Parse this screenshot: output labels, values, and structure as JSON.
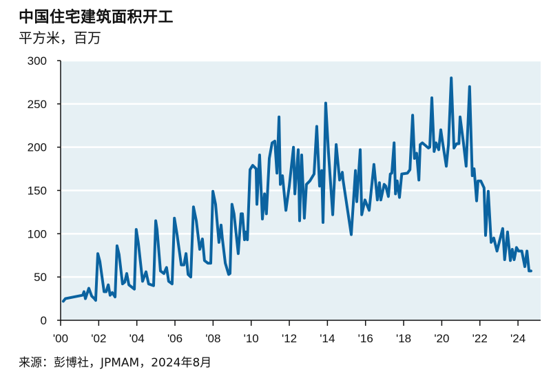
{
  "chart_data": {
    "type": "line",
    "title": "中国住宅建筑面积开工",
    "subtitle": "平方米，百万",
    "source": "来源：彭博社，JPMAM，2024年8月",
    "xlabel": "",
    "ylabel": "",
    "xlim": [
      2000,
      2025.2
    ],
    "ylim": [
      0,
      300
    ],
    "x_ticks": [
      2000,
      2002,
      2004,
      2006,
      2008,
      2010,
      2012,
      2014,
      2016,
      2018,
      2020,
      2022,
      2024
    ],
    "x_tick_labels": [
      "'00",
      "'02",
      "'04",
      "'06",
      "'08",
      "'10",
      "'12",
      "'14",
      "'16",
      "'18",
      "'20",
      "'22",
      "'24"
    ],
    "y_ticks": [
      0,
      50,
      100,
      150,
      200,
      250,
      300
    ],
    "y_tick_labels": [
      "0",
      "50",
      "100",
      "150",
      "200",
      "250",
      "300"
    ],
    "grid": "horizontal",
    "colors": {
      "line": "#0b63a0",
      "plot_background": "#e6f0f4",
      "grid": "#ffffff"
    },
    "series": [
      {
        "points": [
          [
            2000.14,
            22
          ],
          [
            2000.25,
            25
          ],
          [
            2001.16,
            29
          ],
          [
            2001.23,
            33
          ],
          [
            2001.3,
            25
          ],
          [
            2001.48,
            37
          ],
          [
            2001.63,
            28
          ],
          [
            2001.77,
            25
          ],
          [
            2001.84,
            23
          ],
          [
            2001.95,
            77
          ],
          [
            2002.06,
            68
          ],
          [
            2002.28,
            33
          ],
          [
            2002.39,
            33
          ],
          [
            2002.5,
            41
          ],
          [
            2002.6,
            29
          ],
          [
            2002.71,
            32
          ],
          [
            2002.86,
            27
          ],
          [
            2002.96,
            86
          ],
          [
            2003.07,
            76
          ],
          [
            2003.25,
            42
          ],
          [
            2003.36,
            44
          ],
          [
            2003.47,
            54
          ],
          [
            2003.58,
            41
          ],
          [
            2003.87,
            36
          ],
          [
            2003.97,
            105
          ],
          [
            2004.08,
            89
          ],
          [
            2004.3,
            45
          ],
          [
            2004.48,
            56
          ],
          [
            2004.62,
            42
          ],
          [
            2004.88,
            40
          ],
          [
            2004.99,
            115
          ],
          [
            2005.06,
            105
          ],
          [
            2005.24,
            57
          ],
          [
            2005.42,
            54
          ],
          [
            2005.56,
            61
          ],
          [
            2005.67,
            45
          ],
          [
            2005.85,
            42
          ],
          [
            2005.97,
            118
          ],
          [
            2006.11,
            99
          ],
          [
            2006.33,
            64
          ],
          [
            2006.47,
            64
          ],
          [
            2006.58,
            77
          ],
          [
            2006.69,
            53
          ],
          [
            2006.83,
            50
          ],
          [
            2006.97,
            131
          ],
          [
            2007.12,
            115
          ],
          [
            2007.3,
            82
          ],
          [
            2007.44,
            94
          ],
          [
            2007.55,
            69
          ],
          [
            2007.73,
            66
          ],
          [
            2007.88,
            66
          ],
          [
            2007.99,
            149
          ],
          [
            2008.13,
            134
          ],
          [
            2008.31,
            90
          ],
          [
            2008.42,
            110
          ],
          [
            2008.49,
            94
          ],
          [
            2008.64,
            66
          ],
          [
            2008.82,
            53
          ],
          [
            2008.89,
            54
          ],
          [
            2008.99,
            134
          ],
          [
            2009.1,
            123
          ],
          [
            2009.32,
            77
          ],
          [
            2009.47,
            123
          ],
          [
            2009.54,
            123
          ],
          [
            2009.65,
            93
          ],
          [
            2009.72,
            102
          ],
          [
            2009.8,
            93
          ],
          [
            2009.94,
            174
          ],
          [
            2010.08,
            179
          ],
          [
            2010.26,
            175
          ],
          [
            2010.3,
            134
          ],
          [
            2010.44,
            191
          ],
          [
            2010.59,
            117
          ],
          [
            2010.7,
            146
          ],
          [
            2010.8,
            123
          ],
          [
            2010.95,
            187
          ],
          [
            2011.1,
            205
          ],
          [
            2011.24,
            207
          ],
          [
            2011.35,
            170
          ],
          [
            2011.46,
            235
          ],
          [
            2011.53,
            157
          ],
          [
            2011.64,
            167
          ],
          [
            2011.82,
            127
          ],
          [
            2012.0,
            155
          ],
          [
            2012.22,
            200
          ],
          [
            2012.29,
            146
          ],
          [
            2012.47,
            197
          ],
          [
            2012.54,
            115
          ],
          [
            2012.65,
            191
          ],
          [
            2012.79,
            118
          ],
          [
            2012.9,
            157
          ],
          [
            2013.08,
            161
          ],
          [
            2013.3,
            169
          ],
          [
            2013.44,
            224
          ],
          [
            2013.59,
            155
          ],
          [
            2013.7,
            173
          ],
          [
            2013.77,
            113
          ],
          [
            2013.91,
            251
          ],
          [
            2014.06,
            193
          ],
          [
            2014.28,
            122
          ],
          [
            2014.46,
            203
          ],
          [
            2014.64,
            162
          ],
          [
            2014.78,
            171
          ],
          [
            2014.82,
            162
          ],
          [
            2015.25,
            99
          ],
          [
            2015.47,
            173
          ],
          [
            2015.54,
            137
          ],
          [
            2015.72,
            197
          ],
          [
            2015.8,
            122
          ],
          [
            2015.97,
            139
          ],
          [
            2016.19,
            127
          ],
          [
            2016.44,
            180
          ],
          [
            2016.62,
            139
          ],
          [
            2016.73,
            159
          ],
          [
            2016.8,
            139
          ],
          [
            2016.98,
            157
          ],
          [
            2017.06,
            155
          ],
          [
            2017.2,
            143
          ],
          [
            2017.3,
            169
          ],
          [
            2017.38,
            170
          ],
          [
            2017.5,
            205
          ],
          [
            2017.57,
            146
          ],
          [
            2017.66,
            161
          ],
          [
            2017.78,
            142
          ],
          [
            2017.9,
            169
          ],
          [
            2018.2,
            170
          ],
          [
            2018.33,
            174
          ],
          [
            2018.47,
            237
          ],
          [
            2018.57,
            187
          ],
          [
            2018.68,
            193
          ],
          [
            2018.8,
            162
          ],
          [
            2018.87,
            203
          ],
          [
            2018.98,
            205
          ],
          [
            2019.3,
            199
          ],
          [
            2019.37,
            200
          ],
          [
            2019.48,
            257
          ],
          [
            2019.6,
            195
          ],
          [
            2019.7,
            205
          ],
          [
            2019.84,
            197
          ],
          [
            2019.95,
            220
          ],
          [
            2020.06,
            203
          ],
          [
            2020.24,
            178
          ],
          [
            2020.35,
            203
          ],
          [
            2020.5,
            280
          ],
          [
            2020.64,
            199
          ],
          [
            2020.78,
            204
          ],
          [
            2020.9,
            204
          ],
          [
            2020.96,
            235
          ],
          [
            2021.14,
            205
          ],
          [
            2021.28,
            178
          ],
          [
            2021.46,
            270
          ],
          [
            2021.6,
            167
          ],
          [
            2021.7,
            175
          ],
          [
            2021.83,
            138
          ],
          [
            2021.9,
            161
          ],
          [
            2022.05,
            161
          ],
          [
            2022.22,
            153
          ],
          [
            2022.3,
            98
          ],
          [
            2022.44,
            149
          ],
          [
            2022.59,
            90
          ],
          [
            2022.73,
            95
          ],
          [
            2022.9,
            80
          ],
          [
            2023.2,
            106
          ],
          [
            2023.3,
            70
          ],
          [
            2023.45,
            102
          ],
          [
            2023.6,
            69
          ],
          [
            2023.7,
            82
          ],
          [
            2023.8,
            70
          ],
          [
            2023.92,
            84
          ],
          [
            2024.03,
            80
          ],
          [
            2024.2,
            80
          ],
          [
            2024.36,
            62
          ],
          [
            2024.47,
            80
          ],
          [
            2024.58,
            57
          ],
          [
            2024.68,
            57
          ]
        ]
      }
    ]
  }
}
